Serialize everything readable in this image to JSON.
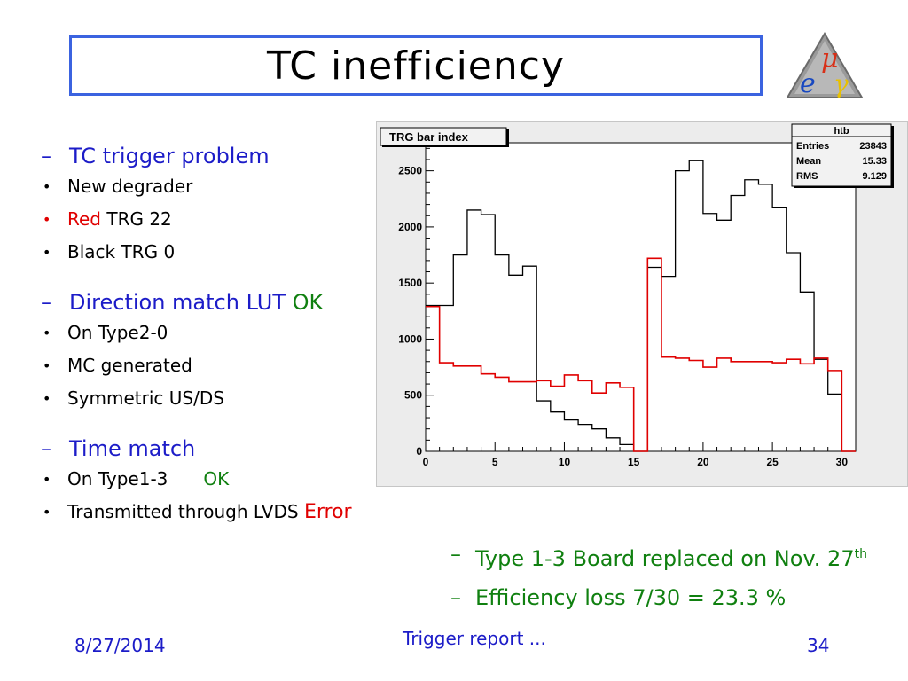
{
  "slide": {
    "title": "TC inefficiency",
    "logo": {
      "letters": [
        "μ",
        "e",
        "γ"
      ],
      "icon": "meg-triangle-logo"
    }
  },
  "bullets": {
    "tc_trigger": {
      "heading": "TC trigger problem",
      "items": [
        "New degrader"
      ],
      "red_word": "Red",
      "red_rest": "TRG 22",
      "black_item": "Black TRG 0"
    },
    "direction": {
      "heading": "Direction match LUT",
      "status": "OK",
      "items": [
        "On Type2-0",
        "MC generated",
        "Symmetric US/DS"
      ]
    },
    "time": {
      "heading": "Time match",
      "item1": "On Type1-3",
      "item1_status": "OK",
      "item2": "Transmitted through LVDS",
      "item2_status": "Error"
    }
  },
  "notes": {
    "note1_text": "Type 1-3 Board replaced on Nov. 27",
    "note1_sup": "th",
    "note2": "Efficiency loss 7/30 = 23.3 %"
  },
  "footer": {
    "date": "8/27/2014",
    "title": "Trigger report ...",
    "page": "34"
  },
  "chart_data": {
    "type": "histogram",
    "title": "TRG bar index",
    "xlabel": "",
    "ylabel": "",
    "xlim": [
      0,
      31
    ],
    "ylim": [
      0,
      2750
    ],
    "xticks": [
      0,
      5,
      10,
      15,
      20,
      25,
      30
    ],
    "yticks": [
      0,
      500,
      1000,
      1500,
      2000,
      2500
    ],
    "grid": false,
    "stats_box": {
      "name": "htb",
      "rows": [
        {
          "label": "Entries",
          "value": "23843"
        },
        {
          "label": "Mean",
          "value": "15.33"
        },
        {
          "label": "RMS",
          "value": "9.129"
        }
      ]
    },
    "series": [
      {
        "color": "#000000",
        "values": [
          1300,
          1300,
          1750,
          2150,
          2110,
          1750,
          1570,
          1650,
          450,
          350,
          280,
          240,
          200,
          120,
          60,
          0,
          1640,
          1560,
          2500,
          2590,
          2120,
          2060,
          2280,
          2420,
          2380,
          2170,
          1770,
          1420,
          820,
          510,
          0
        ]
      },
      {
        "color": "#e00000",
        "values": [
          1290,
          790,
          760,
          760,
          690,
          660,
          620,
          620,
          630,
          580,
          680,
          630,
          520,
          610,
          570,
          0,
          1720,
          840,
          830,
          810,
          750,
          830,
          800,
          800,
          800,
          790,
          820,
          780,
          830,
          720,
          0
        ]
      }
    ]
  }
}
